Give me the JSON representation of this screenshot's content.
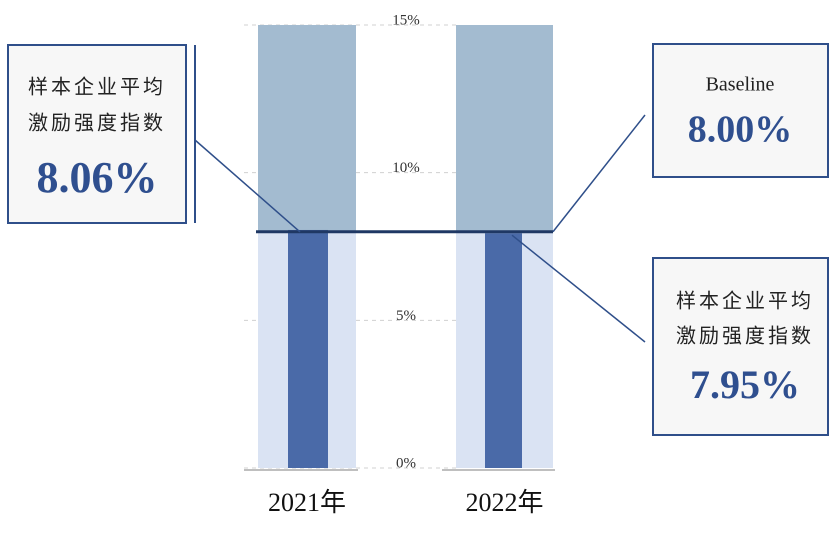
{
  "chart_data": {
    "type": "bullet",
    "categories": [
      "2021年",
      "2022年"
    ],
    "values": [
      8.06,
      7.95
    ],
    "value_labels": [
      "8.06%",
      "7.95%"
    ],
    "value_caption": [
      "样本企业平均",
      "激励强度指数"
    ],
    "color": "#4a6aa8",
    "bands": [
      {
        "to": 8,
        "color": "#dae3f3"
      },
      {
        "to": 15,
        "color": "#a3bbd0"
      }
    ],
    "baseline": {
      "label": "Baseline",
      "value": 8,
      "value_label": "8.00%",
      "color": "#1f3864"
    },
    "ylim": [
      0,
      15
    ],
    "yticks": [
      {
        "value": 0,
        "label": "0%"
      },
      {
        "value": 5,
        "label": "5%"
      },
      {
        "value": 10,
        "label": "10%"
      },
      {
        "value": 15,
        "label": "15%"
      }
    ],
    "grid": true
  }
}
